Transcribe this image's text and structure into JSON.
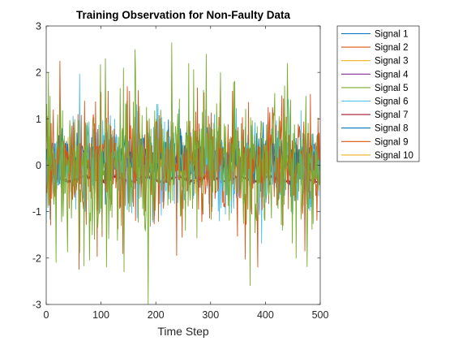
{
  "chart_data": {
    "type": "line",
    "title": "Training Observation for Non-Faulty Data",
    "xlabel": "Time Step",
    "ylabel": "",
    "xlim": [
      0,
      500
    ],
    "ylim": [
      -3,
      3
    ],
    "xticks": [
      "0",
      "100",
      "200",
      "300",
      "400",
      "500"
    ],
    "yticks": [
      "-3",
      "-2",
      "-1",
      "0",
      "1",
      "2",
      "3"
    ],
    "grid": false,
    "legend_position": "outside-right",
    "n_points": 500,
    "series": [
      {
        "name": "Signal 1",
        "color": "#0072BD",
        "mean": 0.1,
        "std": 0.28,
        "peaks": []
      },
      {
        "name": "Signal 2",
        "color": "#D95319",
        "mean": 0.0,
        "std": 0.12,
        "peaks": []
      },
      {
        "name": "Signal 3",
        "color": "#EDB120",
        "mean": 0.05,
        "std": 0.14,
        "peaks": []
      },
      {
        "name": "Signal 4",
        "color": "#7E2F8E",
        "mean": -0.3,
        "std": 0.06,
        "peaks": []
      },
      {
        "name": "Signal 5",
        "color": "#77AC30",
        "mean": 0.0,
        "std": 0.8,
        "peaks": [
          [
            4,
            2.0
          ],
          [
            18,
            -2.1
          ],
          [
            108,
            2.3
          ],
          [
            110,
            -2.2
          ],
          [
            142,
            -2.3
          ],
          [
            162,
            2.5
          ],
          [
            186,
            -3.0
          ],
          [
            260,
            2.2
          ],
          [
            292,
            2.4
          ],
          [
            318,
            2.0
          ],
          [
            372,
            -2.6
          ],
          [
            440,
            2.2
          ]
        ]
      },
      {
        "name": "Signal 6",
        "color": "#4DBEEE",
        "mean": 0.0,
        "std": 0.55,
        "peaks": []
      },
      {
        "name": "Signal 7",
        "color": "#A2142F",
        "mean": -0.3,
        "std": 0.05,
        "peaks": []
      },
      {
        "name": "Signal 8",
        "color": "#0072BD",
        "mean": 0.2,
        "std": 0.22,
        "peaks": []
      },
      {
        "name": "Signal 9",
        "color": "#D95319",
        "mean": 0.0,
        "std": 0.65,
        "peaks": [
          [
            25,
            2.25
          ],
          [
            60,
            -2.25
          ],
          [
            148,
            1.7
          ],
          [
            238,
            -1.95
          ],
          [
            340,
            1.6
          ],
          [
            386,
            -2.2
          ]
        ]
      },
      {
        "name": "Signal 10",
        "color": "#EDB120",
        "mean": 0.05,
        "std": 0.2,
        "peaks": []
      }
    ]
  }
}
